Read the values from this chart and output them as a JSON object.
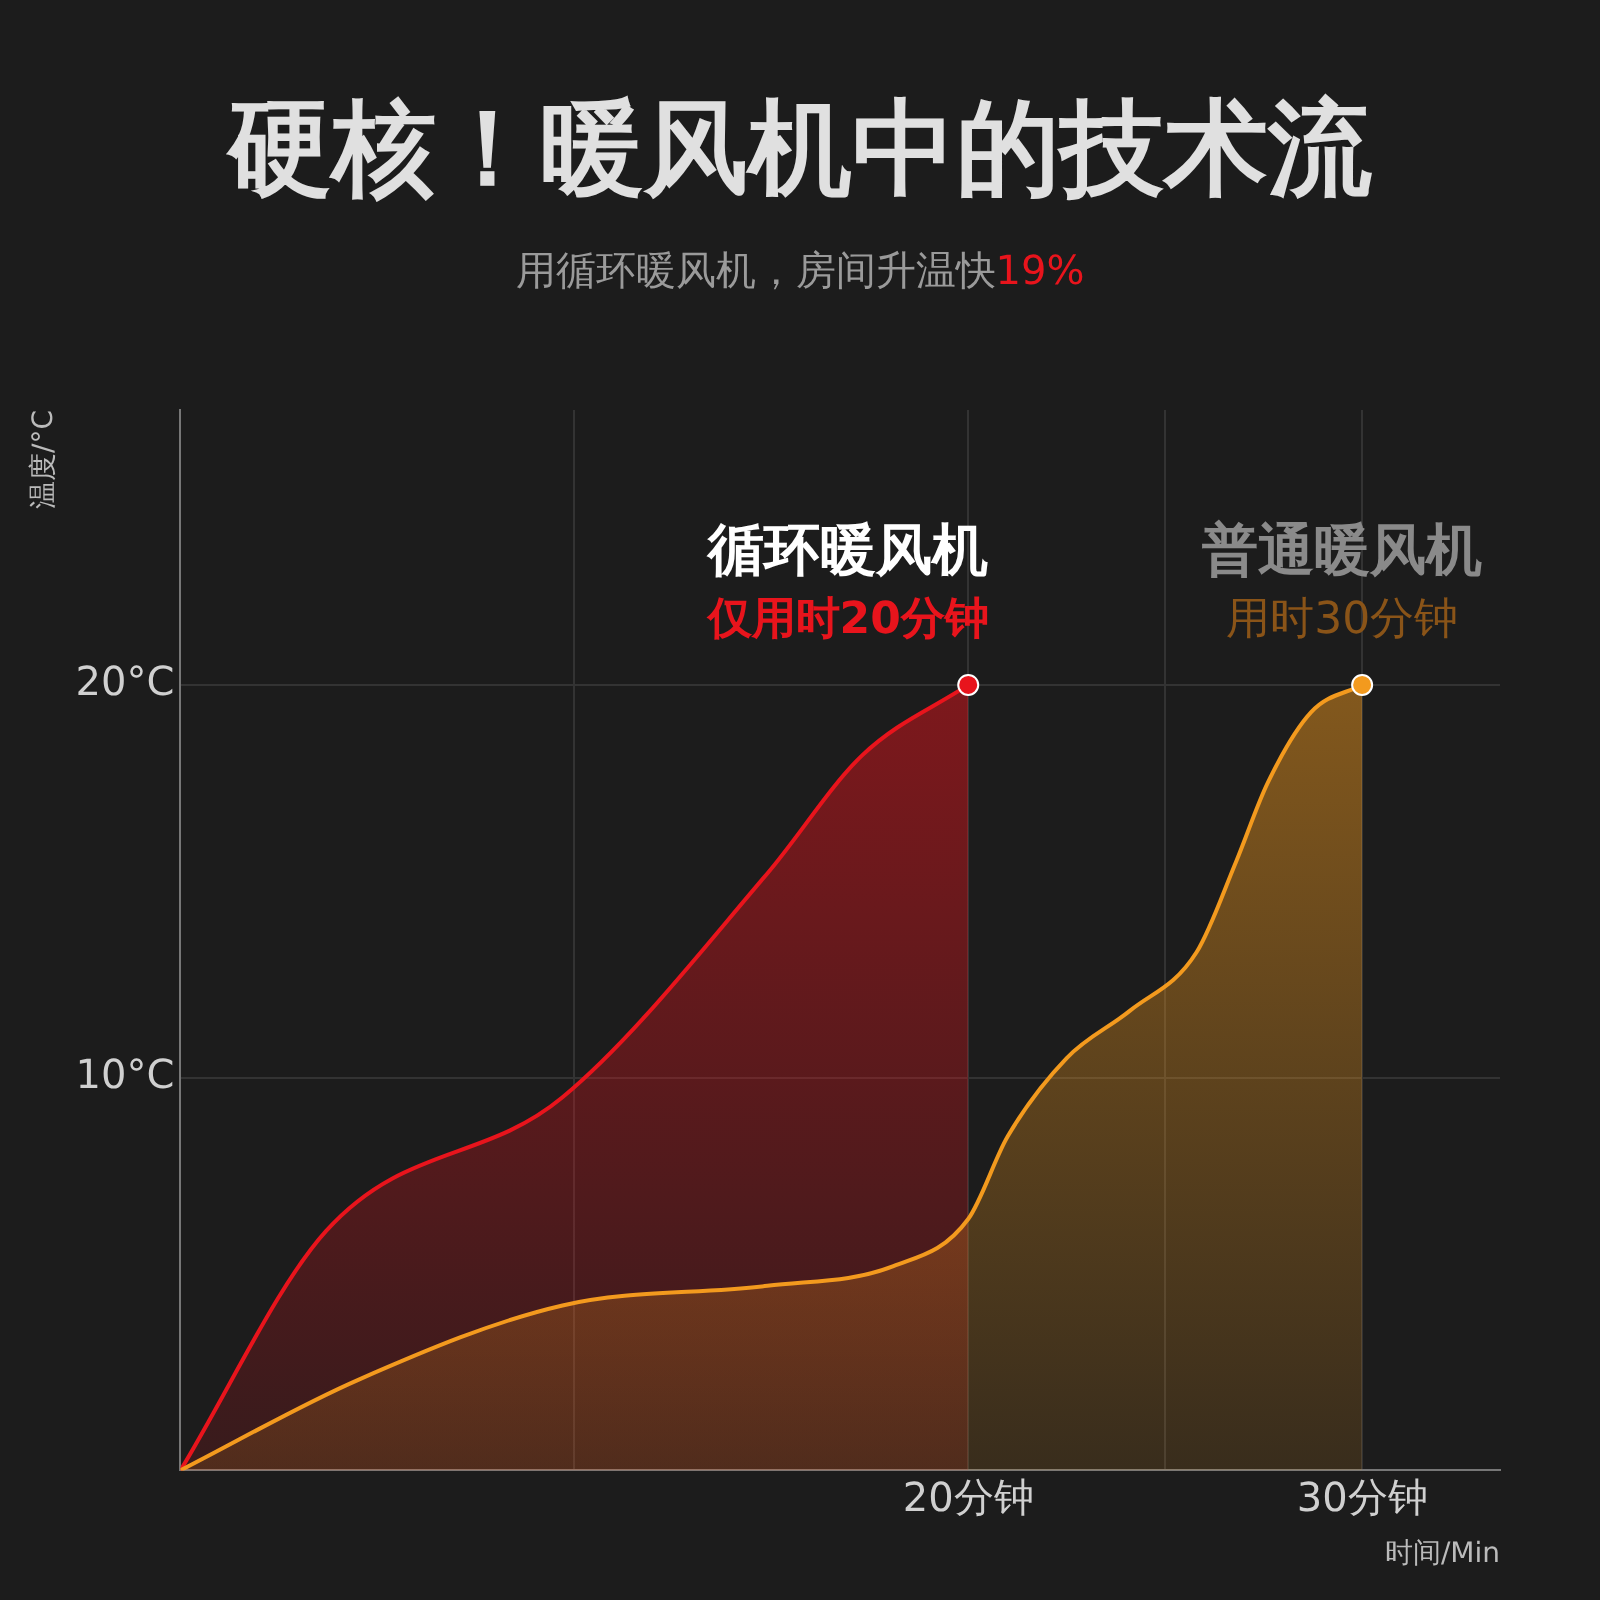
{
  "chart_data": {
    "type": "area",
    "title": "硬核！暖风机中的技术流",
    "subtitle": "用循环暖风机，房间升温快19%",
    "xlabel": "时间/Min",
    "ylabel": "温度/°C",
    "xlim": [
      0,
      33.5
    ],
    "xticks": [
      {
        "value": 10,
        "label": null
      },
      {
        "value": 20,
        "label": "20分钟"
      },
      {
        "value": 25,
        "label": null
      },
      {
        "value": 30,
        "label": "30分钟"
      }
    ],
    "ylim": [
      0,
      27
    ],
    "yticks": [
      {
        "value": 10,
        "label": "10°C"
      },
      {
        "value": 20,
        "label": "20°C"
      }
    ],
    "grid": true,
    "series": [
      {
        "name": "循环暖风机",
        "color": "#e8141c",
        "x": [
          0,
          3.7,
          9.7,
          14.9,
          17.3,
          20
        ],
        "values": [
          0,
          6.1,
          9.5,
          15.2,
          18.2,
          20
        ]
      },
      {
        "name": "普通暖风机",
        "color": "#f39a1e",
        "x": [
          0,
          4.5,
          9.7,
          14.9,
          18.1,
          20,
          21,
          22.5,
          24.1,
          25.8,
          26.8,
          27.6,
          28.7,
          30
        ],
        "values": [
          0,
          2.3,
          4.2,
          4.7,
          5.2,
          6.4,
          8.5,
          10.5,
          11.7,
          13.2,
          15.5,
          17.5,
          19.3,
          20
        ]
      }
    ],
    "annotations": [
      {
        "text": "仅用时20分钟",
        "x": 20,
        "y": 20
      },
      {
        "text": "用时30分钟",
        "x": 30,
        "y": 20
      }
    ]
  }
}
